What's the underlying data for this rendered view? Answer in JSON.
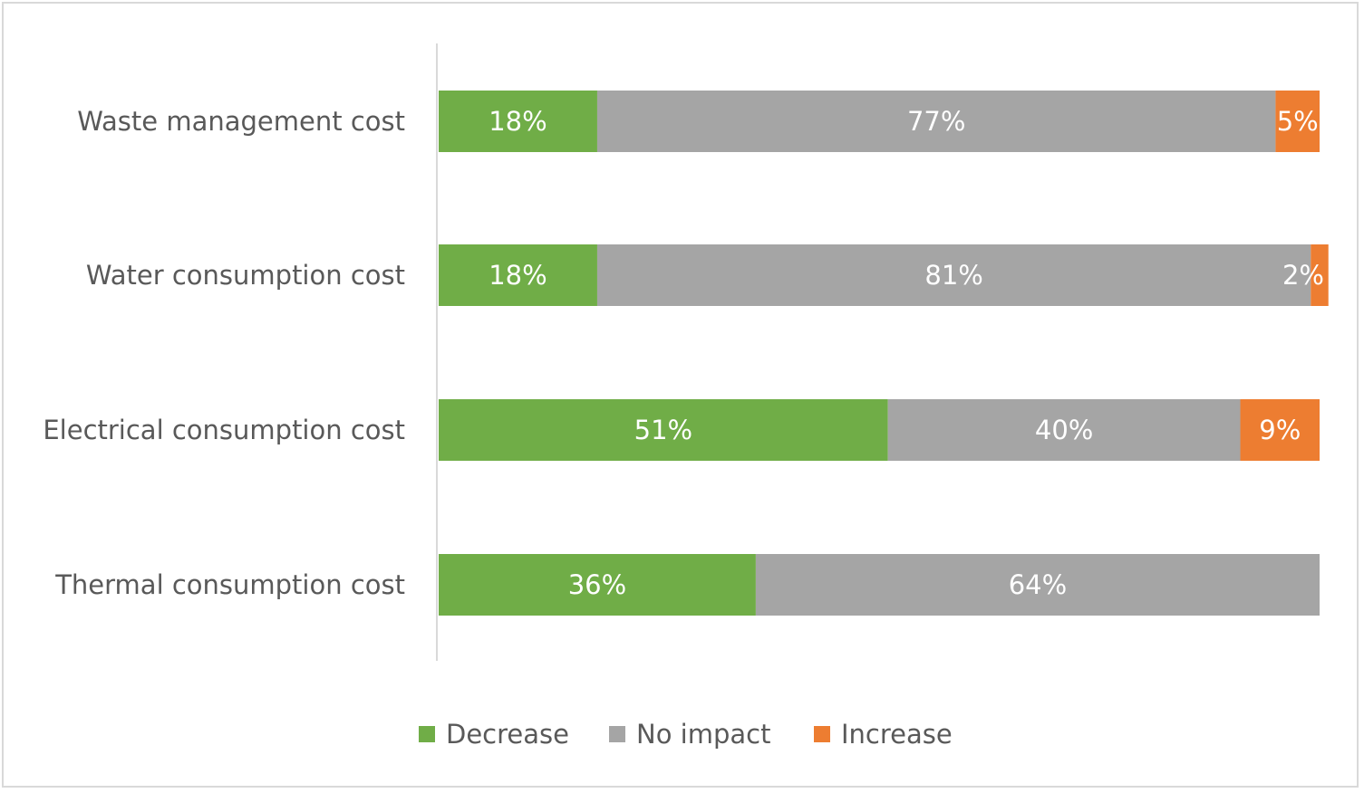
{
  "chart_data": {
    "type": "bar",
    "orientation": "horizontal",
    "stacked": true,
    "percent_stacked": true,
    "title": "",
    "xlabel": "",
    "ylabel": "",
    "categories": [
      "Waste management cost",
      "Water consumption cost",
      "Electrical consumption cost",
      "Thermal consumption cost"
    ],
    "series": [
      {
        "name": "Decrease",
        "color": "#70ad47",
        "values": [
          18,
          18,
          51,
          36
        ],
        "labels": [
          "18%",
          "18%",
          "51%",
          "36%"
        ]
      },
      {
        "name": "No impact",
        "color": "#a5a5a5",
        "values": [
          77,
          81,
          40,
          64
        ],
        "labels": [
          "77%",
          "81%",
          "40%",
          "64%"
        ]
      },
      {
        "name": "Increase",
        "color": "#ed7d31",
        "values": [
          5,
          2,
          9,
          0
        ],
        "labels": [
          "5%",
          "2%",
          "9%",
          ""
        ]
      }
    ],
    "grid": false,
    "legend_position": "bottom"
  },
  "colors": {
    "label_text": "#595959",
    "data_label_text": "#ffffff",
    "axis_line": "#d9d9d9",
    "frame_border": "#d9d9d9"
  }
}
